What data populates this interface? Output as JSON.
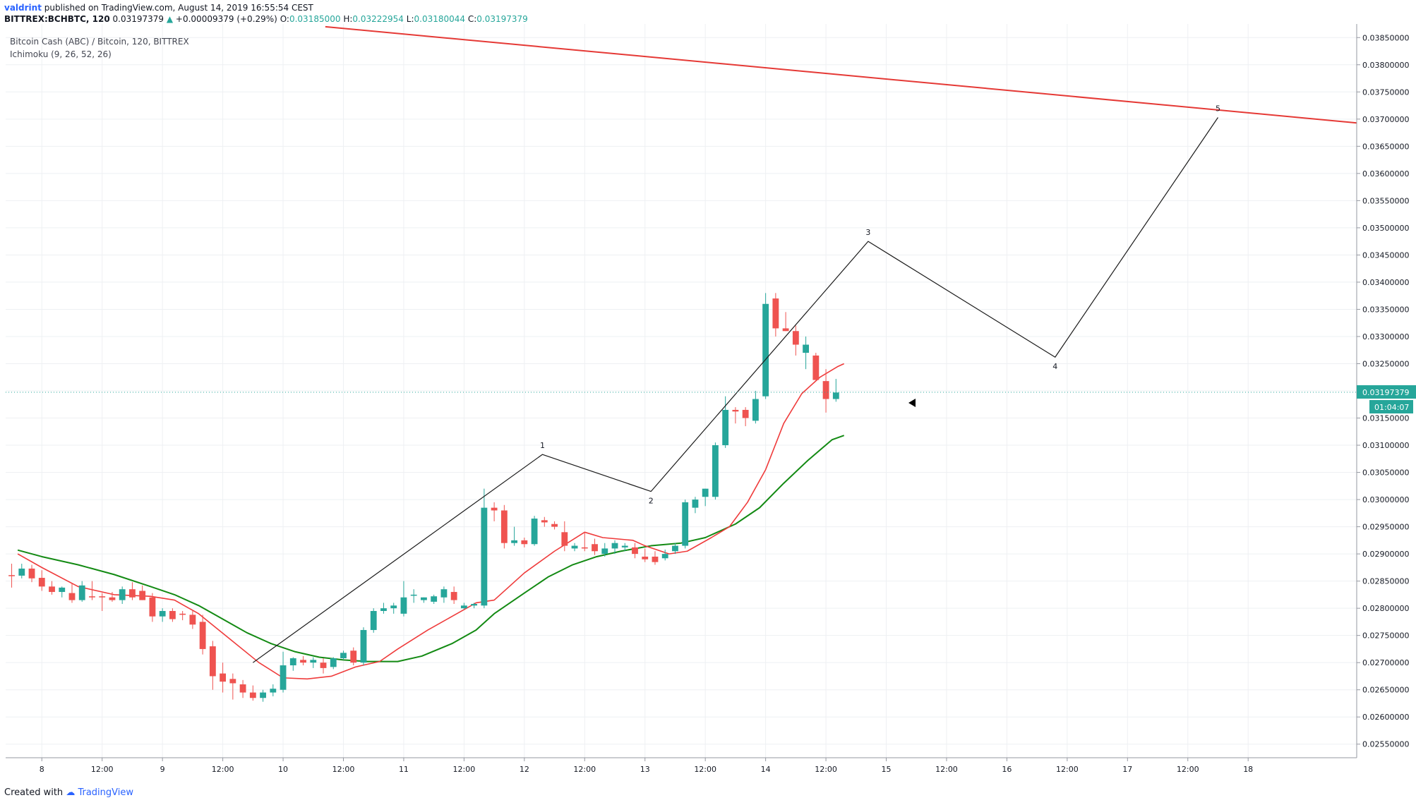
{
  "header": {
    "author": "valdrint",
    "published_text": "published on TradingView.com, August 14, 2019 16:55:54 CEST",
    "symbol": "BITTREX:BCHBTC, 120",
    "last": "0.03197379",
    "change": "+0.00009379 (+0.29%)",
    "o_label": "O:",
    "o_value": "0.03185000",
    "h_label": "H:",
    "h_value": "0.03222954",
    "l_label": "L:",
    "l_value": "0.03180044",
    "c_label": "C:",
    "c_value": "0.03197379"
  },
  "legend": {
    "title": "Bitcoin Cash (ABC) / Bitcoin, 120, BITTREX",
    "indicator": "Ichimoku (9, 26, 52, 26)"
  },
  "footer": {
    "created_with": "Created with",
    "brand": "TradingView"
  },
  "colors": {
    "up": "#26a69a",
    "down": "#ef5350",
    "conversion_line": "#ef3b3b",
    "base_line": "#138a13",
    "resistance": "#e53935",
    "wave": "#1a1a1a",
    "price_line": "#26a69a"
  },
  "chart_data": {
    "type": "candlestick",
    "y_scale": {
      "min": 0.02525,
      "max": 0.03875,
      "ticks": [
        "0.03850000",
        "0.03800000",
        "0.03750000",
        "0.03700000",
        "0.03650000",
        "0.03600000",
        "0.03550000",
        "0.03500000",
        "0.03450000",
        "0.03400000",
        "0.03350000",
        "0.03300000",
        "0.03250000",
        "0.03200000",
        "0.03150000",
        "0.03100000",
        "0.03050000",
        "0.03000000",
        "0.02950000",
        "0.02900000",
        "0.02850000",
        "0.02800000",
        "0.02750000",
        "0.02700000",
        "0.02650000",
        "0.02600000",
        "0.02550000"
      ]
    },
    "x_scale": {
      "start_day": 7.7,
      "end_day": 18.9
    },
    "x_ticks": [
      {
        "t": 8,
        "label": "8"
      },
      {
        "t": 8.5,
        "label": "12:00"
      },
      {
        "t": 9,
        "label": "9"
      },
      {
        "t": 9.5,
        "label": "12:00"
      },
      {
        "t": 10,
        "label": "10"
      },
      {
        "t": 10.5,
        "label": "12:00"
      },
      {
        "t": 11,
        "label": "11"
      },
      {
        "t": 11.5,
        "label": "12:00"
      },
      {
        "t": 12,
        "label": "12"
      },
      {
        "t": 12.5,
        "label": "12:00"
      },
      {
        "t": 13,
        "label": "13"
      },
      {
        "t": 13.5,
        "label": "12:00"
      },
      {
        "t": 14,
        "label": "14"
      },
      {
        "t": 14.5,
        "label": "12:00"
      },
      {
        "t": 15,
        "label": "15"
      },
      {
        "t": 15.5,
        "label": "12:00"
      },
      {
        "t": 16,
        "label": "16"
      },
      {
        "t": 16.5,
        "label": "12:00"
      },
      {
        "t": 17,
        "label": "17"
      },
      {
        "t": 17.5,
        "label": "12:00"
      },
      {
        "t": 18,
        "label": "18"
      }
    ],
    "candle_start_day": 7.75,
    "candle_interval_days": 0.0833333,
    "candles": [
      [
        0.02861,
        0.02882,
        0.02838,
        0.0286
      ],
      [
        0.0286,
        0.02882,
        0.02855,
        0.02873
      ],
      [
        0.02873,
        0.0288,
        0.02848,
        0.02855
      ],
      [
        0.02856,
        0.0287,
        0.02832,
        0.0284
      ],
      [
        0.0284,
        0.0285,
        0.02825,
        0.0283
      ],
      [
        0.0283,
        0.0284,
        0.0282,
        0.02838
      ],
      [
        0.02828,
        0.02845,
        0.0281,
        0.02815
      ],
      [
        0.02815,
        0.0285,
        0.02812,
        0.02842
      ],
      [
        0.02822,
        0.0285,
        0.02815,
        0.0282
      ],
      [
        0.02822,
        0.02828,
        0.02795,
        0.0282
      ],
      [
        0.0282,
        0.0283,
        0.02812,
        0.02815
      ],
      [
        0.02815,
        0.0284,
        0.02808,
        0.02835
      ],
      [
        0.02835,
        0.02848,
        0.02815,
        0.0282
      ],
      [
        0.02832,
        0.02842,
        0.02815,
        0.02815
      ],
      [
        0.0282,
        0.02828,
        0.02775,
        0.02785
      ],
      [
        0.02785,
        0.028,
        0.02775,
        0.02795
      ],
      [
        0.02795,
        0.028,
        0.02775,
        0.0278
      ],
      [
        0.0279,
        0.02795,
        0.02778,
        0.02788
      ],
      [
        0.02788,
        0.02795,
        0.02762,
        0.0277
      ],
      [
        0.02775,
        0.02788,
        0.02715,
        0.02725
      ],
      [
        0.0273,
        0.0274,
        0.0265,
        0.02675
      ],
      [
        0.0268,
        0.027,
        0.02645,
        0.02665
      ],
      [
        0.0267,
        0.0268,
        0.02632,
        0.02662
      ],
      [
        0.0266,
        0.02668,
        0.02635,
        0.02645
      ],
      [
        0.02645,
        0.02658,
        0.0263,
        0.02635
      ],
      [
        0.02635,
        0.0265,
        0.02628,
        0.02645
      ],
      [
        0.02645,
        0.0266,
        0.02638,
        0.02652
      ],
      [
        0.0265,
        0.0272,
        0.02645,
        0.02695
      ],
      [
        0.02695,
        0.0271,
        0.02685,
        0.02708
      ],
      [
        0.02705,
        0.02712,
        0.02695,
        0.027
      ],
      [
        0.027,
        0.0271,
        0.0269,
        0.02705
      ],
      [
        0.027,
        0.02708,
        0.0268,
        0.0269
      ],
      [
        0.02692,
        0.0271,
        0.02688,
        0.02708
      ],
      [
        0.02708,
        0.02722,
        0.02705,
        0.02718
      ],
      [
        0.02722,
        0.02728,
        0.02695,
        0.027
      ],
      [
        0.027,
        0.02765,
        0.02695,
        0.0276
      ],
      [
        0.0276,
        0.028,
        0.02755,
        0.02795
      ],
      [
        0.02795,
        0.0281,
        0.0279,
        0.028
      ],
      [
        0.028,
        0.0281,
        0.0279,
        0.02805
      ],
      [
        0.0279,
        0.0285,
        0.02785,
        0.0282
      ],
      [
        0.02825,
        0.02835,
        0.0281,
        0.02825
      ],
      [
        0.02815,
        0.0282,
        0.0281,
        0.0282
      ],
      [
        0.02812,
        0.02825,
        0.02808,
        0.02822
      ],
      [
        0.0282,
        0.0284,
        0.0281,
        0.02835
      ],
      [
        0.0283,
        0.0284,
        0.02808,
        0.02815
      ],
      [
        0.028,
        0.0281,
        0.02798,
        0.02805
      ],
      [
        0.02805,
        0.0281,
        0.028,
        0.02808
      ],
      [
        0.02805,
        0.0302,
        0.028,
        0.02985
      ],
      [
        0.02985,
        0.02995,
        0.0296,
        0.0298
      ],
      [
        0.0298,
        0.0299,
        0.0291,
        0.0292
      ],
      [
        0.0292,
        0.0295,
        0.02915,
        0.02925
      ],
      [
        0.02925,
        0.0293,
        0.02912,
        0.02918
      ],
      [
        0.02918,
        0.0297,
        0.02915,
        0.02965
      ],
      [
        0.02962,
        0.02968,
        0.0295,
        0.02958
      ],
      [
        0.02955,
        0.0296,
        0.02945,
        0.0295
      ],
      [
        0.0294,
        0.0296,
        0.02905,
        0.02915
      ],
      [
        0.0291,
        0.0292,
        0.02905,
        0.02915
      ],
      [
        0.02912,
        0.0294,
        0.02905,
        0.0291
      ],
      [
        0.02918,
        0.02928,
        0.02898,
        0.02905
      ],
      [
        0.029,
        0.0292,
        0.02895,
        0.0291
      ],
      [
        0.0291,
        0.02925,
        0.029,
        0.0292
      ],
      [
        0.02912,
        0.0292,
        0.02905,
        0.02915
      ],
      [
        0.02912,
        0.0292,
        0.02892,
        0.029
      ],
      [
        0.02895,
        0.0291,
        0.02885,
        0.0289
      ],
      [
        0.02895,
        0.02905,
        0.0288,
        0.02885
      ],
      [
        0.02892,
        0.02908,
        0.02888,
        0.029
      ],
      [
        0.02905,
        0.0292,
        0.029,
        0.02915
      ],
      [
        0.02915,
        0.03,
        0.0291,
        0.02995
      ],
      [
        0.02985,
        0.03005,
        0.02975,
        0.03
      ],
      [
        0.03005,
        0.0302,
        0.02988,
        0.0302
      ],
      [
        0.03005,
        0.03105,
        0.03,
        0.031
      ],
      [
        0.031,
        0.0319,
        0.03095,
        0.03165
      ],
      [
        0.03165,
        0.0317,
        0.0314,
        0.03162
      ],
      [
        0.03165,
        0.0317,
        0.03135,
        0.0315
      ],
      [
        0.03145,
        0.032,
        0.0314,
        0.03185
      ],
      [
        0.0319,
        0.0338,
        0.03185,
        0.0336
      ],
      [
        0.0337,
        0.0338,
        0.033,
        0.03315
      ],
      [
        0.03315,
        0.03345,
        0.0331,
        0.0331
      ],
      [
        0.0331,
        0.0332,
        0.03265,
        0.03285
      ],
      [
        0.0327,
        0.033,
        0.0324,
        0.03285
      ],
      [
        0.03265,
        0.0327,
        0.0322,
        0.0322
      ],
      [
        0.03218,
        0.0324,
        0.0316,
        0.03185
      ],
      [
        0.03185,
        0.03222,
        0.0318,
        0.03197
      ]
    ],
    "conversion_line": [
      [
        7.8,
        0.029
      ],
      [
        8.0,
        0.02875
      ],
      [
        8.3,
        0.0284
      ],
      [
        8.6,
        0.02825
      ],
      [
        8.9,
        0.02822
      ],
      [
        9.1,
        0.02815
      ],
      [
        9.3,
        0.0279
      ],
      [
        9.55,
        0.02745
      ],
      [
        9.8,
        0.027
      ],
      [
        10.0,
        0.02672
      ],
      [
        10.2,
        0.0267
      ],
      [
        10.4,
        0.02675
      ],
      [
        10.6,
        0.02692
      ],
      [
        10.8,
        0.02702
      ],
      [
        10.95,
        0.02725
      ],
      [
        11.2,
        0.0276
      ],
      [
        11.4,
        0.02785
      ],
      [
        11.6,
        0.0281
      ],
      [
        11.75,
        0.02815
      ],
      [
        11.85,
        0.02835
      ],
      [
        12.0,
        0.02865
      ],
      [
        12.25,
        0.02905
      ],
      [
        12.5,
        0.0294
      ],
      [
        12.65,
        0.0293
      ],
      [
        12.9,
        0.02925
      ],
      [
        13.0,
        0.02915
      ],
      [
        13.2,
        0.029
      ],
      [
        13.35,
        0.02905
      ],
      [
        13.55,
        0.0293
      ],
      [
        13.7,
        0.0295
      ],
      [
        13.85,
        0.02995
      ],
      [
        14.0,
        0.03055
      ],
      [
        14.15,
        0.0314
      ],
      [
        14.3,
        0.03195
      ],
      [
        14.45,
        0.03225
      ],
      [
        14.6,
        0.03245
      ],
      [
        14.65,
        0.0325
      ]
    ],
    "base_line": [
      [
        7.8,
        0.02907
      ],
      [
        8.0,
        0.02895
      ],
      [
        8.3,
        0.0288
      ],
      [
        8.6,
        0.02862
      ],
      [
        8.9,
        0.0284
      ],
      [
        9.1,
        0.02825
      ],
      [
        9.3,
        0.02805
      ],
      [
        9.5,
        0.0278
      ],
      [
        9.7,
        0.02755
      ],
      [
        9.9,
        0.02735
      ],
      [
        10.1,
        0.0272
      ],
      [
        10.3,
        0.0271
      ],
      [
        10.5,
        0.02705
      ],
      [
        10.7,
        0.02702
      ],
      [
        10.95,
        0.02702
      ],
      [
        11.15,
        0.02712
      ],
      [
        11.4,
        0.02735
      ],
      [
        11.6,
        0.0276
      ],
      [
        11.75,
        0.0279
      ],
      [
        12.0,
        0.02828
      ],
      [
        12.2,
        0.02858
      ],
      [
        12.4,
        0.0288
      ],
      [
        12.6,
        0.02895
      ],
      [
        12.8,
        0.02905
      ],
      [
        13.05,
        0.02915
      ],
      [
        13.3,
        0.0292
      ],
      [
        13.5,
        0.0293
      ],
      [
        13.75,
        0.02955
      ],
      [
        13.95,
        0.02985
      ],
      [
        14.15,
        0.0303
      ],
      [
        14.35,
        0.03072
      ],
      [
        14.55,
        0.0311
      ],
      [
        14.65,
        0.03118
      ]
    ],
    "resistance_line": [
      [
        10.35,
        0.0387
      ],
      [
        18.9,
        0.03693
      ]
    ],
    "wave_path": [
      [
        9.75,
        0.027
      ],
      [
        12.15,
        0.03083
      ],
      [
        13.05,
        0.03015
      ],
      [
        14.85,
        0.03475
      ],
      [
        16.4,
        0.03262
      ],
      [
        17.75,
        0.03703
      ]
    ],
    "wave_labels": [
      {
        "t": 12.15,
        "p": 0.03083,
        "label": "1",
        "pos": "above"
      },
      {
        "t": 13.05,
        "p": 0.03015,
        "label": "2",
        "pos": "below"
      },
      {
        "t": 14.85,
        "p": 0.03475,
        "label": "3",
        "pos": "above"
      },
      {
        "t": 16.4,
        "p": 0.03262,
        "label": "4",
        "pos": "below"
      },
      {
        "t": 17.75,
        "p": 0.03703,
        "label": "5",
        "pos": "above"
      }
    ],
    "current_price": 0.03197379,
    "current_price_label": "0.03197379",
    "countdown": "01:04:07",
    "grid": true
  }
}
